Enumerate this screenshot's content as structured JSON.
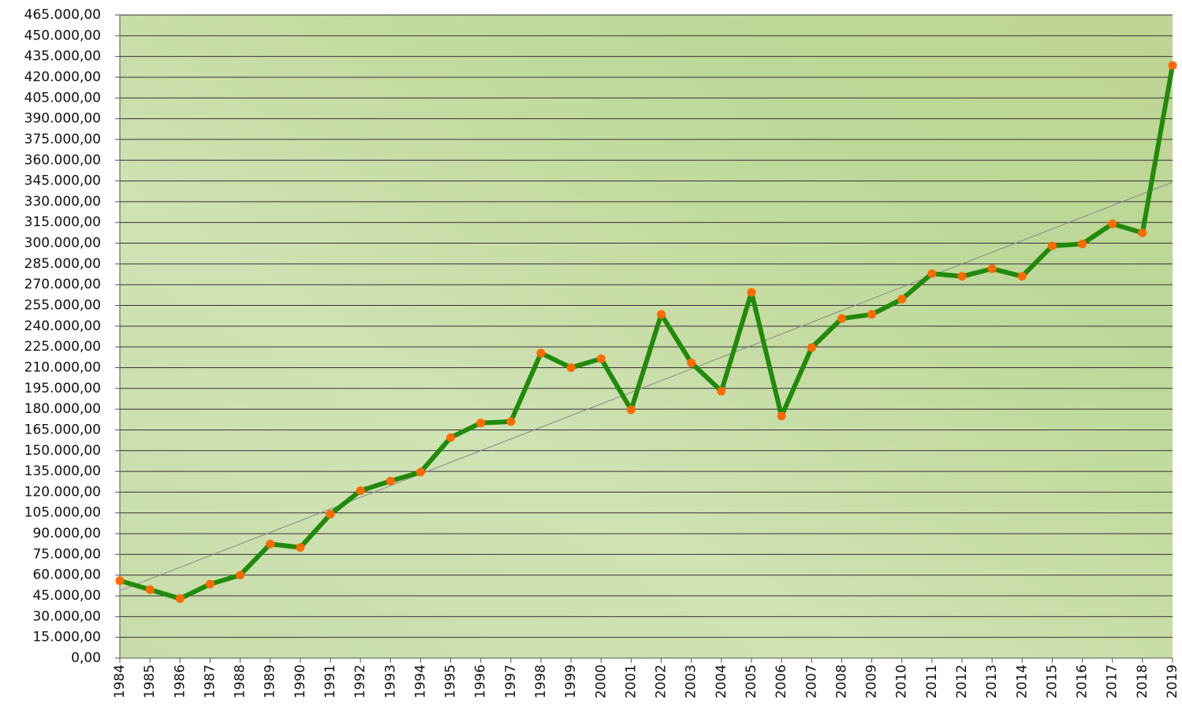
{
  "chart_data": {
    "type": "line",
    "categories": [
      "1984",
      "1985",
      "1986",
      "1987",
      "1988",
      "1989",
      "1990",
      "1991",
      "1992",
      "1993",
      "1994",
      "1995",
      "1996",
      "1997",
      "1998",
      "1999",
      "2000",
      "2001",
      "2002",
      "2003",
      "2004",
      "2005",
      "2006",
      "2007",
      "2008",
      "2009",
      "2010",
      "2011",
      "2012",
      "2013",
      "2014",
      "2015",
      "2016",
      "2017",
      "2018",
      "2019"
    ],
    "series": [
      {
        "color": "#218a0c",
        "marker_color": "#ff6a00",
        "values": [
          56000,
          49500,
          43000,
          53500,
          60000,
          82500,
          80000,
          104000,
          121000,
          128000,
          134500,
          159500,
          170000,
          171000,
          220500,
          210000,
          216500,
          179500,
          248500,
          213500,
          193000,
          264500,
          175000,
          224500,
          245500,
          248500,
          259500,
          278000,
          276000,
          281500,
          276000,
          298000,
          299500,
          314000,
          307500,
          428500
        ]
      }
    ],
    "trendline": true,
    "ylim": [
      0,
      465000
    ],
    "yticks": [
      {
        "value": 0,
        "label": "0,00"
      },
      {
        "value": 15000,
        "label": "15.000,00"
      },
      {
        "value": 30000,
        "label": "30.000,00"
      },
      {
        "value": 45000,
        "label": "45.000,00"
      },
      {
        "value": 60000,
        "label": "60.000,00"
      },
      {
        "value": 75000,
        "label": "75.000,00"
      },
      {
        "value": 90000,
        "label": "90.000,00"
      },
      {
        "value": 105000,
        "label": "105.000,00"
      },
      {
        "value": 120000,
        "label": "120.000,00"
      },
      {
        "value": 135000,
        "label": "135.000,00"
      },
      {
        "value": 150000,
        "label": "150.000,00"
      },
      {
        "value": 165000,
        "label": "165.000,00"
      },
      {
        "value": 180000,
        "label": "180.000,00"
      },
      {
        "value": 195000,
        "label": "195.000,00"
      },
      {
        "value": 210000,
        "label": "210.000,00"
      },
      {
        "value": 225000,
        "label": "225.000,00"
      },
      {
        "value": 240000,
        "label": "240.000,00"
      },
      {
        "value": 255000,
        "label": "255.000,00"
      },
      {
        "value": 270000,
        "label": "270.000,00"
      },
      {
        "value": 285000,
        "label": "285.000,00"
      },
      {
        "value": 300000,
        "label": "300.000,00"
      },
      {
        "value": 315000,
        "label": "315.000,00"
      },
      {
        "value": 330000,
        "label": "330.000,00"
      },
      {
        "value": 345000,
        "label": "345.000,00"
      },
      {
        "value": 360000,
        "label": "360.000,00"
      },
      {
        "value": 375000,
        "label": "375.000,00"
      },
      {
        "value": 390000,
        "label": "390.000,00"
      },
      {
        "value": 405000,
        "label": "405.000,00"
      },
      {
        "value": 420000,
        "label": "420.000,00"
      },
      {
        "value": 435000,
        "label": "435.000,00"
      },
      {
        "value": 450000,
        "label": "450.000,00"
      },
      {
        "value": 465000,
        "label": "465.000,00"
      }
    ],
    "grid": true
  }
}
